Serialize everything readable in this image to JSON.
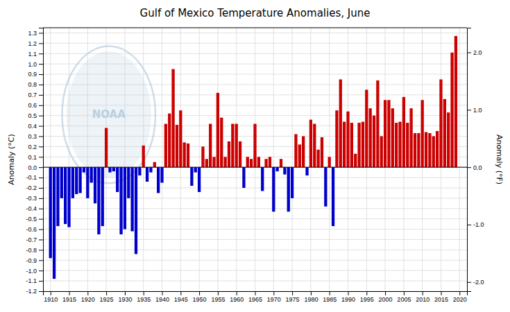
{
  "chart_data": {
    "type": "bar",
    "title": "Gulf of Mexico Temperature Anomalies, June",
    "y_label": "Anomaly (°C)",
    "y2_label": "Anomaly (°F)",
    "annotations": [
      "NOAA"
    ],
    "x": [
      1910,
      1911,
      1912,
      1913,
      1914,
      1915,
      1916,
      1917,
      1918,
      1919,
      1920,
      1921,
      1922,
      1923,
      1924,
      1925,
      1926,
      1927,
      1928,
      1929,
      1930,
      1931,
      1932,
      1933,
      1934,
      1935,
      1936,
      1937,
      1938,
      1939,
      1940,
      1941,
      1942,
      1943,
      1944,
      1945,
      1946,
      1947,
      1948,
      1949,
      1950,
      1951,
      1952,
      1953,
      1954,
      1955,
      1956,
      1957,
      1958,
      1959,
      1960,
      1961,
      1962,
      1963,
      1964,
      1965,
      1966,
      1967,
      1968,
      1969,
      1970,
      1971,
      1972,
      1973,
      1974,
      1975,
      1976,
      1977,
      1978,
      1979,
      1980,
      1981,
      1982,
      1983,
      1984,
      1985,
      1986,
      1987,
      1988,
      1989,
      1990,
      1991,
      1992,
      1993,
      1994,
      1995,
      1996,
      1997,
      1998,
      1999,
      2000,
      2001,
      2002,
      2003,
      2004,
      2005,
      2006,
      2007,
      2008,
      2009,
      2010,
      2011,
      2012,
      2013,
      2014,
      2015,
      2016,
      2017,
      2018,
      2019
    ],
    "values": [
      -0.88,
      -1.08,
      -0.57,
      -0.3,
      -0.55,
      -0.58,
      -0.3,
      -0.26,
      -0.25,
      -0.05,
      -0.3,
      -0.15,
      -0.35,
      -0.65,
      -0.57,
      0.38,
      -0.05,
      -0.04,
      -0.24,
      -0.65,
      -0.6,
      -0.3,
      -0.62,
      -0.84,
      -0.08,
      0.21,
      -0.14,
      -0.05,
      0.05,
      -0.25,
      -0.15,
      0.42,
      0.52,
      0.95,
      0.41,
      0.55,
      0.24,
      0.23,
      -0.18,
      -0.05,
      -0.24,
      0.2,
      0.08,
      0.42,
      0.1,
      0.72,
      0.48,
      0.1,
      0.25,
      0.42,
      0.42,
      0.25,
      -0.2,
      0.1,
      0.08,
      0.42,
      0.1,
      -0.23,
      0.08,
      0.1,
      -0.43,
      -0.04,
      0.08,
      -0.07,
      -0.43,
      -0.3,
      0.32,
      0.22,
      0.3,
      -0.08,
      0.46,
      0.42,
      0.17,
      0.29,
      -0.38,
      0.1,
      -0.57,
      0.55,
      0.85,
      0.44,
      0.54,
      0.43,
      0.13,
      0.43,
      0.44,
      0.75,
      0.57,
      0.5,
      0.84,
      0.3,
      0.65,
      0.65,
      0.57,
      0.43,
      0.44,
      0.68,
      0.43,
      0.57,
      0.33,
      0.33,
      0.65,
      0.34,
      0.33,
      0.3,
      0.35,
      0.85,
      0.66,
      0.53,
      1.11,
      1.27
    ],
    "colors": [
      "#0000cc",
      "#0000cc",
      "#0000cc",
      "#0000cc",
      "#0000cc",
      "#0000cc",
      "#0000cc",
      "#0000cc",
      "#0000cc",
      "#0000cc",
      "#0000cc",
      "#0000cc",
      "#0000cc",
      "#0000cc",
      "#0000cc",
      "#cc0000",
      "#0000cc",
      "#0000cc",
      "#0000cc",
      "#0000cc",
      "#0000cc",
      "#0000cc",
      "#0000cc",
      "#0000cc",
      "#0000cc",
      "#cc0000",
      "#0000cc",
      "#0000cc",
      "#cc0000",
      "#0000cc",
      "#0000cc",
      "#cc0000",
      "#cc0000",
      "#cc0000",
      "#cc0000",
      "#cc0000",
      "#cc0000",
      "#cc0000",
      "#0000cc",
      "#0000cc",
      "#0000cc",
      "#cc0000",
      "#cc0000",
      "#cc0000",
      "#cc0000",
      "#cc0000",
      "#cc0000",
      "#cc0000",
      "#cc0000",
      "#cc0000",
      "#cc0000",
      "#cc0000",
      "#0000cc",
      "#cc0000",
      "#cc0000",
      "#cc0000",
      "#cc0000",
      "#0000cc",
      "#cc0000",
      "#cc0000",
      "#0000cc",
      "#0000cc",
      "#cc0000",
      "#0000cc",
      "#0000cc",
      "#0000cc",
      "#cc0000",
      "#cc0000",
      "#cc0000",
      "#0000cc",
      "#cc0000",
      "#cc0000",
      "#cc0000",
      "#cc0000",
      "#0000cc",
      "#cc0000",
      "#0000cc",
      "#cc0000",
      "#cc0000",
      "#cc0000",
      "#cc0000",
      "#cc0000",
      "#cc0000",
      "#cc0000",
      "#cc0000",
      "#cc0000",
      "#cc0000",
      "#cc0000",
      "#cc0000",
      "#cc0000",
      "#cc0000",
      "#cc0000",
      "#cc0000",
      "#cc0000",
      "#cc0000",
      "#cc0000",
      "#cc0000",
      "#cc0000",
      "#cc0000",
      "#cc0000",
      "#cc0000",
      "#cc0000",
      "#cc0000",
      "#cc0000",
      "#cc0000",
      "#cc0000",
      "#cc0000",
      "#cc0000",
      "#cc0000",
      "#cc0000"
    ],
    "xlim": [
      1908.0,
      2022.0
    ],
    "xticks": [
      1910,
      1915,
      1920,
      1925,
      1930,
      1935,
      1940,
      1945,
      1950,
      1955,
      1960,
      1965,
      1970,
      1975,
      1980,
      1985,
      1990,
      1995,
      2000,
      2005,
      2010,
      2015,
      2020
    ],
    "ylim": [
      -1.2,
      1.35
    ],
    "yticks": [
      -1.2,
      -1.1,
      {
        "value": -1.0,
        "label": "-1.0"
      },
      -0.9,
      -0.8,
      -0.7,
      -0.6,
      -0.5,
      -0.4,
      -0.3,
      -0.2,
      -0.1,
      {
        "value": 0.0,
        "label": "0.0"
      },
      0.1,
      0.2,
      0.3,
      0.4,
      0.5,
      0.6,
      0.7,
      0.8,
      0.9,
      {
        "value": 1.0,
        "label": "1.0"
      },
      1.1,
      1.2,
      1.3
    ],
    "y2lim": [
      -2.16,
      2.43
    ],
    "y2ticks": [
      {
        "value": -2.0,
        "label": "-2.0"
      },
      {
        "value": -1.0,
        "label": "-1.0"
      },
      {
        "value": 0.0,
        "label": "0.0"
      },
      {
        "value": 1.0,
        "label": "1.0"
      },
      {
        "value": 2.0,
        "label": "2.0"
      }
    ],
    "grid": true
  }
}
